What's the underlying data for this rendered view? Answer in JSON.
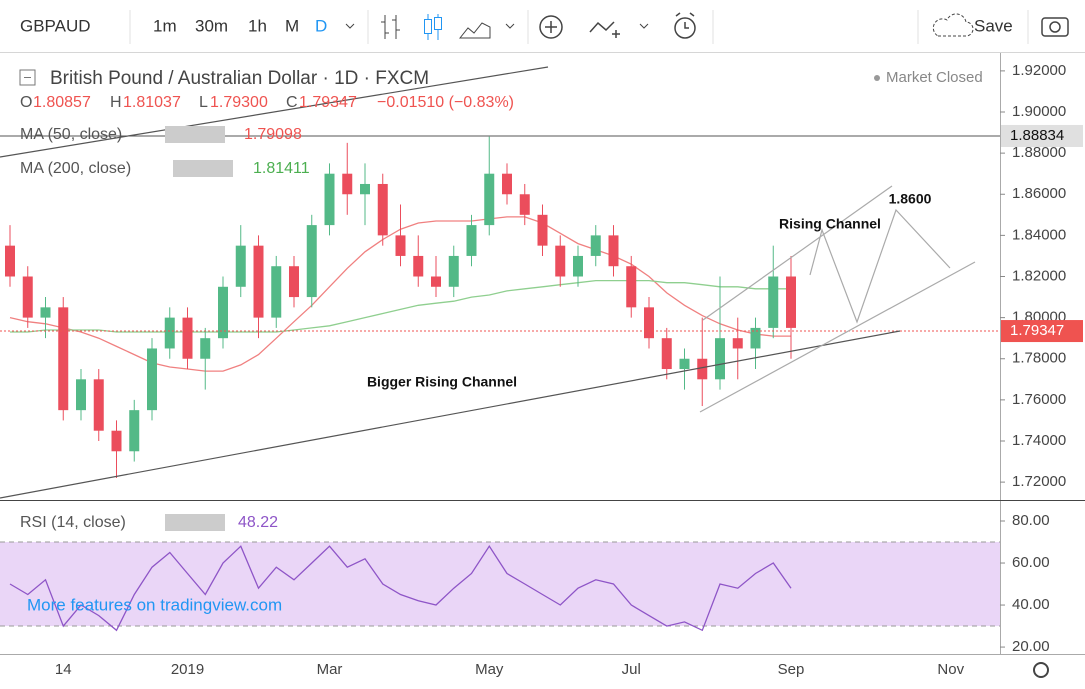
{
  "toolbar": {
    "symbol": "GBPAUD",
    "intervals": [
      "1m",
      "30m",
      "1h",
      "M",
      "D"
    ],
    "save": "Save"
  },
  "legend": {
    "title": "British Pound / Australian Dollar · 1D · FXCM",
    "status": "Market Closed",
    "ohlc": [
      {
        "label": "O",
        "value": "1.80857"
      },
      {
        "label": "H",
        "value": "1.81037"
      },
      {
        "label": "L",
        "value": "1.79300"
      },
      {
        "label": "C",
        "value": "1.79347"
      }
    ],
    "change": "−0.01510 (−0.83%)",
    "studies": [
      {
        "name": "MA (50, close)",
        "value": "1.79098"
      },
      {
        "name": "MA (200, close)",
        "value": "1.81411"
      }
    ],
    "rsi": {
      "name": "RSI (14, close)",
      "value": "48.22"
    }
  },
  "watermark": "More features on tradingview.com",
  "chart_data": [
    {
      "type": "candlestick",
      "categories": [
        null,
        null,
        null,
        "14",
        null,
        null,
        null,
        null,
        null,
        null,
        "2019",
        null,
        null,
        null,
        null,
        null,
        null,
        null,
        "Mar",
        null,
        null,
        null,
        null,
        null,
        null,
        null,
        null,
        "May",
        null,
        null,
        null,
        null,
        null,
        null,
        null,
        "Jul",
        null,
        null,
        null,
        null,
        null,
        null,
        null,
        null,
        "Sep",
        null,
        null,
        null,
        null,
        null,
        null,
        null,
        null,
        "Nov",
        null,
        null
      ],
      "open": [
        1.835,
        1.82,
        1.8,
        1.805,
        1.755,
        1.77,
        1.745,
        1.735,
        1.755,
        1.785,
        1.8,
        1.78,
        1.79,
        1.815,
        1.835,
        1.8,
        1.825,
        1.81,
        1.845,
        1.87,
        1.86,
        1.865,
        1.84,
        1.83,
        1.82,
        1.815,
        1.83,
        1.845,
        1.87,
        1.86,
        1.85,
        1.835,
        1.82,
        1.83,
        1.84,
        1.825,
        1.805,
        1.79,
        1.775,
        1.78,
        1.77,
        1.79,
        1.785,
        1.795,
        1.82,
        null,
        null,
        null,
        null,
        null,
        null,
        null,
        null,
        null,
        null,
        null
      ],
      "high": [
        1.845,
        1.825,
        1.81,
        1.81,
        1.775,
        1.775,
        1.75,
        1.76,
        1.79,
        1.805,
        1.805,
        1.795,
        1.82,
        1.845,
        1.84,
        1.83,
        1.83,
        1.85,
        1.875,
        1.885,
        1.875,
        1.87,
        1.855,
        1.84,
        1.83,
        1.835,
        1.85,
        1.888,
        1.875,
        1.865,
        1.855,
        1.84,
        1.835,
        1.845,
        1.845,
        1.83,
        1.81,
        1.795,
        1.785,
        1.8,
        1.82,
        1.8,
        1.8,
        1.835,
        1.83,
        null,
        null,
        null,
        null,
        null,
        null,
        null,
        null,
        null,
        null,
        null
      ],
      "low": [
        1.815,
        1.795,
        1.79,
        1.75,
        1.75,
        1.74,
        1.722,
        1.73,
        1.75,
        1.78,
        1.775,
        1.765,
        1.785,
        1.81,
        1.79,
        1.795,
        1.805,
        1.805,
        1.84,
        1.85,
        1.845,
        1.835,
        1.825,
        1.815,
        1.81,
        1.81,
        1.825,
        1.84,
        1.855,
        1.845,
        1.83,
        1.815,
        1.815,
        1.825,
        1.82,
        1.8,
        1.785,
        1.77,
        1.765,
        1.757,
        1.765,
        1.77,
        1.775,
        1.79,
        1.78,
        null,
        null,
        null,
        null,
        null,
        null,
        null,
        null,
        null,
        null,
        null
      ],
      "close": [
        1.82,
        1.8,
        1.805,
        1.755,
        1.77,
        1.745,
        1.735,
        1.755,
        1.785,
        1.8,
        1.78,
        1.79,
        1.815,
        1.835,
        1.8,
        1.825,
        1.81,
        1.845,
        1.87,
        1.86,
        1.865,
        1.84,
        1.83,
        1.82,
        1.815,
        1.83,
        1.845,
        1.87,
        1.86,
        1.85,
        1.835,
        1.82,
        1.83,
        1.84,
        1.825,
        1.805,
        1.79,
        1.775,
        1.78,
        1.77,
        1.79,
        1.785,
        1.795,
        1.82,
        1.795,
        null,
        null,
        null,
        null,
        null,
        null,
        null,
        null,
        null,
        null,
        null
      ],
      "up_color": "#53b987",
      "down_color": "#eb4d5c",
      "series": [
        {
          "name": "MA (50, close)",
          "color": "#f08080",
          "values": [
            1.8,
            1.798,
            1.797,
            1.795,
            1.793,
            1.79,
            1.786,
            1.782,
            1.778,
            1.776,
            1.775,
            1.774,
            1.774,
            1.777,
            1.782,
            1.79,
            1.798,
            1.806,
            1.815,
            1.824,
            1.832,
            1.838,
            1.843,
            1.846,
            1.847,
            1.847,
            1.847,
            1.848,
            1.849,
            1.849,
            1.846,
            1.841,
            1.836,
            1.833,
            1.83,
            1.826,
            1.82,
            1.812,
            1.806,
            1.801,
            1.797,
            1.794,
            1.792,
            1.791,
            1.791,
            null,
            null,
            null,
            null,
            null,
            null,
            null,
            null,
            null,
            null,
            null
          ]
        },
        {
          "name": "MA (200, close)",
          "color": "#8fcf8f",
          "values": [
            1.793,
            1.793,
            1.794,
            1.794,
            1.794,
            1.794,
            1.793,
            1.793,
            1.793,
            1.793,
            1.793,
            1.793,
            1.793,
            1.793,
            1.793,
            1.793,
            1.794,
            1.795,
            1.796,
            1.798,
            1.8,
            1.802,
            1.804,
            1.806,
            1.807,
            1.808,
            1.81,
            1.811,
            1.813,
            1.814,
            1.815,
            1.816,
            1.817,
            1.818,
            1.818,
            1.818,
            1.818,
            1.817,
            1.817,
            1.816,
            1.815,
            1.815,
            1.814,
            1.814,
            1.814,
            null,
            null,
            null,
            null,
            null,
            null,
            null,
            null,
            null,
            null,
            null
          ]
        }
      ],
      "ylim": [
        1.7113,
        1.9287
      ],
      "yticks": [
        {
          "value": 1.92,
          "label": "1.92000"
        },
        {
          "value": 1.9,
          "label": "1.90000"
        },
        {
          "value": 1.88,
          "label": "1.88000"
        },
        {
          "value": 1.86,
          "label": "1.86000"
        },
        {
          "value": 1.84,
          "label": "1.84000"
        },
        {
          "value": 1.82,
          "label": "1.82000"
        },
        {
          "value": 1.8,
          "label": "1.80000"
        },
        {
          "value": 1.78,
          "label": "1.78000"
        },
        {
          "value": 1.76,
          "label": "1.76000"
        },
        {
          "value": 1.74,
          "label": "1.74000"
        },
        {
          "value": 1.72,
          "label": "1.72000"
        }
      ],
      "price_lines": [
        {
          "value": 1.88834,
          "label": "1.88834",
          "color": "#555555"
        },
        {
          "value": 1.79347,
          "label": "1.79347",
          "color": "#ef5350"
        }
      ],
      "annotations": [
        {
          "text": "Rising Channel"
        },
        {
          "text": "1.8600"
        },
        {
          "text": "Bigger Rising Channel"
        }
      ]
    },
    {
      "type": "line",
      "series": [
        {
          "name": "RSI (14, close)",
          "color": "#8e55c7",
          "values": [
            50,
            45,
            52,
            30,
            40,
            35,
            28,
            45,
            58,
            65,
            55,
            45,
            60,
            68,
            48,
            58,
            52,
            60,
            68,
            58,
            62,
            50,
            45,
            42,
            40,
            48,
            55,
            68,
            55,
            50,
            45,
            40,
            48,
            52,
            50,
            40,
            35,
            30,
            32,
            28,
            50,
            48,
            55,
            60,
            48,
            null,
            null,
            null,
            null,
            null,
            null,
            null,
            null,
            null,
            null,
            null
          ]
        }
      ],
      "band": [
        30,
        70
      ],
      "band_color": "#ead6f7",
      "ylim": [
        16.7,
        90
      ],
      "yticks": [
        {
          "value": 80,
          "label": "80.00"
        },
        {
          "value": 60,
          "label": "60.00"
        },
        {
          "value": 40,
          "label": "40.00"
        },
        {
          "value": 20,
          "label": "20.00"
        }
      ]
    }
  ]
}
